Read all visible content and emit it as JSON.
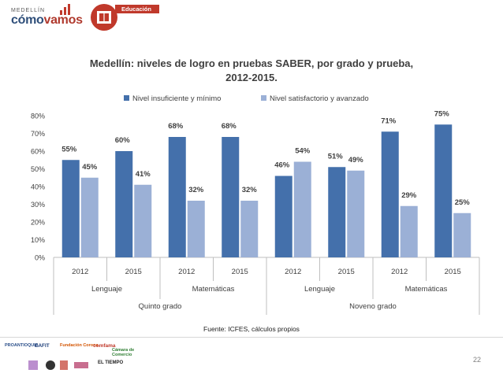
{
  "header": {
    "brand_small": "MEDELLÍN",
    "brand_main": "cómo",
    "brand_accent": "vamos",
    "topic_label": "Educación"
  },
  "chart_data": {
    "type": "bar",
    "title_line1": "Medellín: niveles de logro en pruebas SABER, por grado y prueba,",
    "title_line2": "2012-2015.",
    "ylim": [
      0,
      80
    ],
    "yticks": [
      0,
      10,
      20,
      30,
      40,
      50,
      60,
      70,
      80
    ],
    "ytick_labels": [
      "0%",
      "10%",
      "20%",
      "30%",
      "40%",
      "50%",
      "60%",
      "70%",
      "80%"
    ],
    "legend_position": "top",
    "categories": [
      "2012",
      "2015",
      "2012",
      "2015",
      "2012",
      "2015",
      "2012",
      "2015"
    ],
    "subject_groups": [
      {
        "label": "Lenguaje",
        "span": 2
      },
      {
        "label": "Matemáticas",
        "span": 2
      },
      {
        "label": "Lenguaje",
        "span": 2
      },
      {
        "label": "Matemáticas",
        "span": 2
      }
    ],
    "grade_groups": [
      {
        "label": "Quinto grado",
        "span": 4
      },
      {
        "label": "Noveno grado",
        "span": 4
      }
    ],
    "series": [
      {
        "name": "Nivel insuficiente y mínimo",
        "color": "#4470ab",
        "values": [
          55,
          60,
          68,
          68,
          46,
          51,
          71,
          75
        ],
        "labels": [
          "55%",
          "60%",
          "68%",
          "68%",
          "46%",
          "51%",
          "71%",
          "75%"
        ]
      },
      {
        "name": "Nivel satisfactorio y avanzado",
        "color": "#9bb0d6",
        "values": [
          45,
          41,
          32,
          32,
          54,
          49,
          29,
          25
        ],
        "labels": [
          "45%",
          "41%",
          "32%",
          "32%",
          "54%",
          "49%",
          "29%",
          "25%"
        ]
      }
    ]
  },
  "footer": {
    "source": "Fuente: ICFES, cálculos propios",
    "page_number": "22",
    "sponsors": [
      "PROANTIOQUIA",
      "EAFIT",
      "Fundación Corona",
      "comfama",
      "Cámara de Comercio",
      "EL TIEMPO"
    ]
  }
}
